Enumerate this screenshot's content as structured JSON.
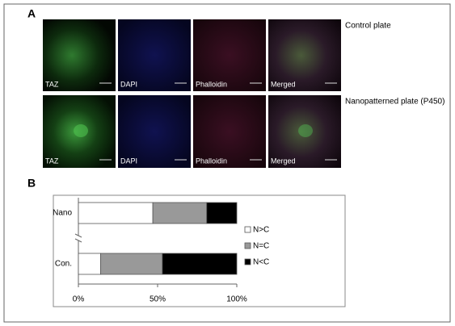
{
  "panel_a": {
    "label": "A",
    "rows": [
      {
        "title": "Control plate",
        "channels": [
          "TAZ",
          "DAPI",
          "Phalloidin",
          "Merged"
        ]
      },
      {
        "title": "Nanopatterned plate (P450)",
        "channels": [
          "TAZ",
          "DAPI",
          "Phalloidin",
          "Merged"
        ]
      }
    ]
  },
  "chart_data": {
    "type": "stacked-barh",
    "label": "B",
    "categories": [
      "Nano",
      "Con."
    ],
    "series": [
      {
        "name": "N>C",
        "color": "#ffffff",
        "values": [
          47,
          14
        ]
      },
      {
        "name": "N=C",
        "color": "#999999",
        "values": [
          34,
          39
        ]
      },
      {
        "name": "N<C",
        "color": "#000000",
        "values": [
          19,
          47
        ]
      }
    ],
    "xlim": [
      0,
      100
    ],
    "xticks": [
      {
        "value": 0,
        "label": "0%"
      },
      {
        "value": 50,
        "label": "50%"
      },
      {
        "value": 100,
        "label": "100%"
      }
    ]
  }
}
